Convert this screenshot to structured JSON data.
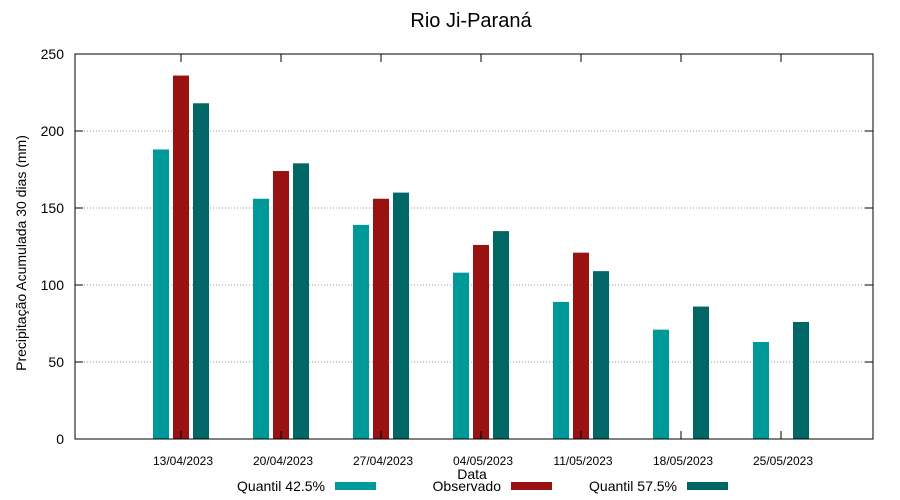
{
  "chart_data": {
    "type": "bar",
    "title": "Rio Ji-Paraná",
    "xlabel": "Data",
    "ylabel": "Precipitação Acumulada 30 dias (mm)",
    "ylim": [
      0,
      250
    ],
    "yticks": [
      0,
      50,
      100,
      150,
      200,
      250
    ],
    "grid": true,
    "legend_position": "bottom",
    "categories": [
      "13/04/2023",
      "20/04/2023",
      "27/04/2023",
      "04/05/2023",
      "11/05/2023",
      "18/05/2023",
      "25/05/2023"
    ],
    "series": [
      {
        "name": "Quantil 42.5%",
        "color": "#009999",
        "values": [
          188,
          156,
          139,
          108,
          89,
          71,
          63
        ]
      },
      {
        "name": "Observado",
        "color": "#991111",
        "values": [
          236,
          174,
          156,
          126,
          121,
          null,
          null
        ]
      },
      {
        "name": "Quantil 57.5%",
        "color": "#006666",
        "values": [
          218,
          179,
          160,
          135,
          109,
          86,
          76
        ]
      }
    ]
  }
}
